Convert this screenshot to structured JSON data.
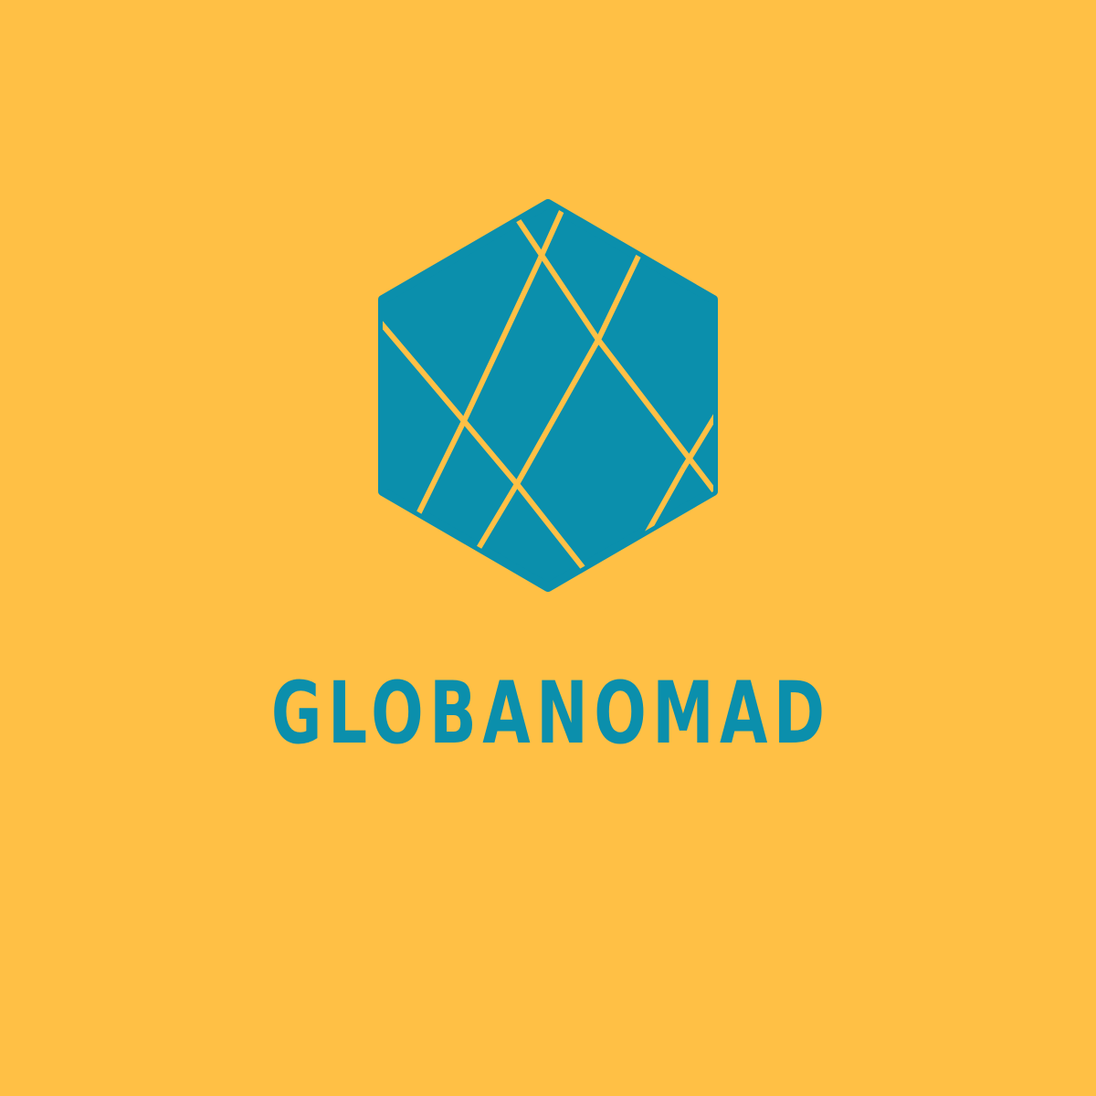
{
  "colors": {
    "background": "#FFC045",
    "mark": "#0B8FAC",
    "divider": "#FFC045",
    "wordmark": "#0B8FAC"
  },
  "logo": {
    "icon": "faceted-hexagon-globe-icon",
    "wordmark_text": "GLOBANOMAD"
  }
}
